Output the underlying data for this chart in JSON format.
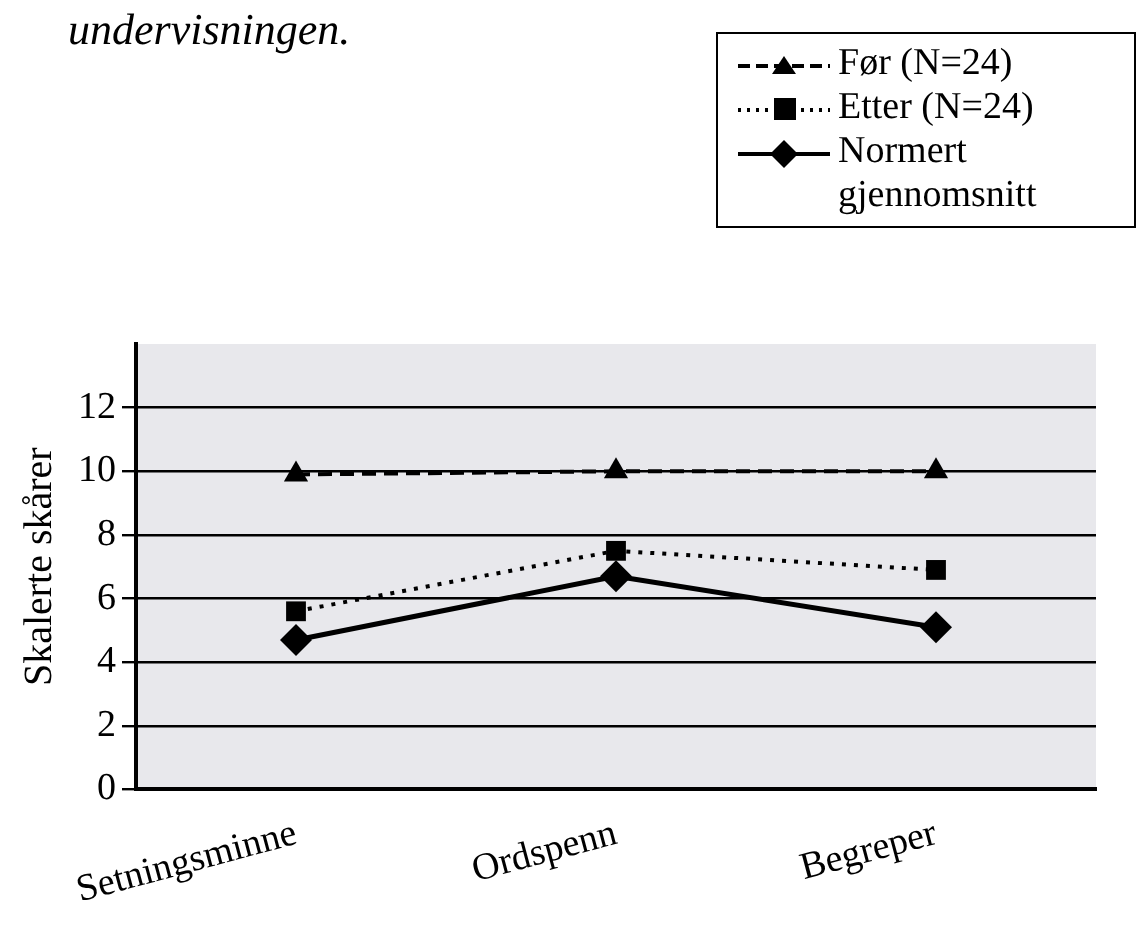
{
  "chart_data": {
    "type": "line",
    "annotations": [
      "undervisningen."
    ],
    "ylabel": "Skalerte skårer",
    "categories": [
      "Setningsminne",
      "Ordspenn",
      "Begreper"
    ],
    "series": [
      {
        "name": "Før (N=24)",
        "color": "#000000",
        "values": [
          9.9,
          10.0,
          10.0
        ],
        "marker": "triangle",
        "line_style": "dashed"
      },
      {
        "name": "Etter (N=24)",
        "color": "#000000",
        "values": [
          5.6,
          7.5,
          6.9
        ],
        "marker": "square",
        "line_style": "dotted"
      },
      {
        "name": "Normert gjennomsnitt",
        "color": "#000000",
        "values": [
          4.7,
          6.7,
          5.1
        ],
        "marker": "diamond",
        "line_style": "solid"
      }
    ],
    "ylim": [
      0,
      14
    ],
    "yticks": [
      0,
      2,
      4,
      6,
      8,
      10,
      12
    ],
    "grid": "y",
    "legend": "top right"
  }
}
